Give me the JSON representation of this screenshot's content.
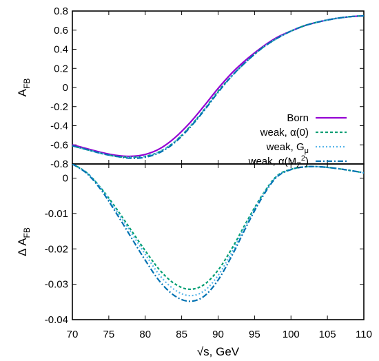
{
  "chart_data": [
    {
      "type": "line",
      "panel": "top",
      "ylabel_main": "A",
      "ylabel_sub": "FB",
      "xlim": [
        70,
        110
      ],
      "ylim": [
        -0.8,
        0.8
      ],
      "yticks": [
        "0.8",
        "0.6",
        "0.4",
        "0.2",
        "0",
        "-0.2",
        "-0.4",
        "-0.6",
        "-0.8"
      ],
      "ytick_values": [
        0.8,
        0.6,
        0.4,
        0.2,
        0,
        -0.2,
        -0.4,
        -0.6,
        -0.8
      ],
      "legend_position": "bottom-right",
      "series": [
        {
          "name": "Born",
          "color": "#9400d3",
          "dash": "solid",
          "x": [
            70,
            72,
            74,
            76,
            78,
            80,
            82,
            84,
            86,
            88,
            90,
            92,
            94,
            96,
            98,
            100,
            102,
            104,
            106,
            108,
            110
          ],
          "y": [
            -0.6,
            -0.64,
            -0.68,
            -0.71,
            -0.72,
            -0.7,
            -0.64,
            -0.53,
            -0.38,
            -0.2,
            -0.01,
            0.16,
            0.3,
            0.42,
            0.52,
            0.59,
            0.65,
            0.69,
            0.72,
            0.74,
            0.75
          ]
        },
        {
          "name": "weak, α(0)",
          "color": "#009e73",
          "dash": "4,3",
          "x": [
            70,
            72,
            74,
            76,
            78,
            80,
            82,
            84,
            86,
            88,
            90,
            92,
            94,
            96,
            98,
            100,
            102,
            104,
            106,
            108,
            110
          ],
          "y": [
            -0.61,
            -0.65,
            -0.69,
            -0.72,
            -0.73,
            -0.72,
            -0.67,
            -0.57,
            -0.42,
            -0.24,
            -0.04,
            0.13,
            0.28,
            0.41,
            0.51,
            0.59,
            0.65,
            0.69,
            0.72,
            0.74,
            0.75
          ]
        },
        {
          "name": "weak, G",
          "name_sub": "μ",
          "color": "#56b4e9",
          "dash": "2,3",
          "x": [
            70,
            72,
            74,
            76,
            78,
            80,
            82,
            84,
            86,
            88,
            90,
            92,
            94,
            96,
            98,
            100,
            102,
            104,
            106,
            108,
            110
          ],
          "y": [
            -0.61,
            -0.65,
            -0.69,
            -0.72,
            -0.73,
            -0.72,
            -0.67,
            -0.57,
            -0.42,
            -0.24,
            -0.05,
            0.13,
            0.28,
            0.41,
            0.51,
            0.59,
            0.65,
            0.69,
            0.72,
            0.74,
            0.75
          ]
        },
        {
          "name": "weak, α(M",
          "name_sub": "Z",
          "name_sup": "2",
          "name_tail": ")",
          "color": "#0072b2",
          "dash": "8,3,2,3",
          "x": [
            70,
            72,
            74,
            76,
            78,
            80,
            82,
            84,
            86,
            88,
            90,
            92,
            94,
            96,
            98,
            100,
            102,
            104,
            106,
            108,
            110
          ],
          "y": [
            -0.61,
            -0.65,
            -0.69,
            -0.72,
            -0.74,
            -0.73,
            -0.68,
            -0.58,
            -0.43,
            -0.25,
            -0.05,
            0.13,
            0.28,
            0.41,
            0.51,
            0.59,
            0.65,
            0.69,
            0.72,
            0.74,
            0.75
          ]
        }
      ]
    },
    {
      "type": "line",
      "panel": "bottom",
      "ylabel_main": "Δ A",
      "ylabel_sub": "FB",
      "xlabel": "√s, GeV",
      "xlim": [
        70,
        110
      ],
      "ylim": [
        -0.04,
        0.004
      ],
      "xticks": [
        "70",
        "75",
        "80",
        "85",
        "90",
        "95",
        "100",
        "105",
        "110"
      ],
      "xtick_values": [
        70,
        75,
        80,
        85,
        90,
        95,
        100,
        105,
        110
      ],
      "yticks": [
        "0",
        "-0.01",
        "-0.02",
        "-0.03",
        "-0.04"
      ],
      "ytick_values": [
        0,
        -0.01,
        -0.02,
        -0.03,
        -0.04
      ],
      "series": [
        {
          "name": "weak, α(0)",
          "color": "#009e73",
          "dash": "4,3",
          "x": [
            70,
            72,
            74,
            76,
            78,
            80,
            82,
            84,
            86,
            88,
            90,
            92,
            94,
            96,
            98,
            100,
            102,
            104,
            106,
            108,
            110
          ],
          "y": [
            0.004,
            0.0015,
            -0.003,
            -0.0085,
            -0.0145,
            -0.0205,
            -0.026,
            -0.0298,
            -0.0314,
            -0.0302,
            -0.026,
            -0.0195,
            -0.012,
            -0.005,
            0.0005,
            0.0025,
            0.0032,
            0.0032,
            0.0028,
            0.0022,
            0.0015
          ]
        },
        {
          "name": "weak, G",
          "name_sub": "μ",
          "color": "#56b4e9",
          "dash": "2,3",
          "x": [
            70,
            72,
            74,
            76,
            78,
            80,
            82,
            84,
            86,
            88,
            90,
            92,
            94,
            96,
            98,
            100,
            102,
            104,
            106,
            108,
            110
          ],
          "y": [
            0.004,
            0.0015,
            -0.003,
            -0.009,
            -0.0152,
            -0.0215,
            -0.0275,
            -0.0315,
            -0.0332,
            -0.032,
            -0.0275,
            -0.0205,
            -0.0125,
            -0.0052,
            0.0004,
            0.0025,
            0.0032,
            0.0032,
            0.0028,
            0.0022,
            0.0015
          ]
        },
        {
          "name": "weak, α(M",
          "name_sub": "Z",
          "name_sup": "2",
          "name_tail": ")",
          "color": "#0072b2",
          "dash": "8,3,2,3",
          "x": [
            70,
            72,
            74,
            76,
            78,
            80,
            82,
            84,
            86,
            88,
            90,
            92,
            94,
            96,
            98,
            100,
            102,
            104,
            106,
            108,
            110
          ],
          "y": [
            0.004,
            0.0013,
            -0.0035,
            -0.0098,
            -0.0165,
            -0.0232,
            -0.0292,
            -0.0332,
            -0.0348,
            -0.0335,
            -0.0288,
            -0.0215,
            -0.0132,
            -0.0056,
            0.0002,
            0.0024,
            0.0032,
            0.0032,
            0.0028,
            0.0022,
            0.0015
          ]
        }
      ]
    }
  ]
}
